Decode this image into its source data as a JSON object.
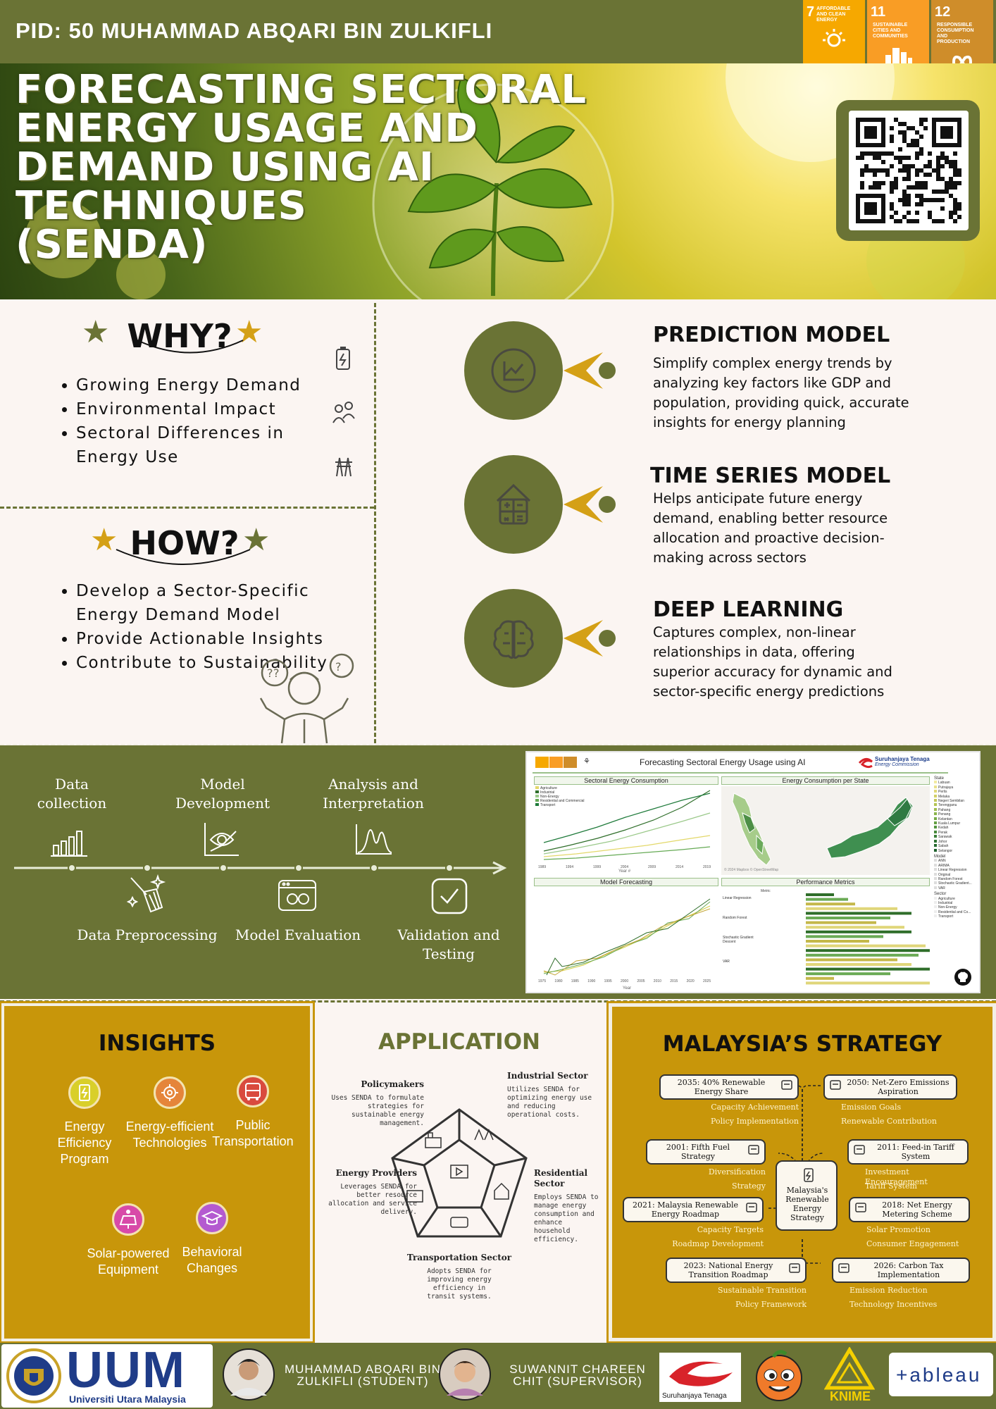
{
  "header": {
    "pid": "PID: 50 MUHAMMAD ABQARI BIN ZULKIFLI",
    "sdgs": [
      {
        "num": "7",
        "label": "AFFORDABLE AND CLEAN ENERGY",
        "color": "#f6a800",
        "icon": "sun-icon"
      },
      {
        "num": "11",
        "label": "SUSTAINABLE CITIES AND COMMUNITIES",
        "color": "#f99d25",
        "icon": "city-icon"
      },
      {
        "num": "12",
        "label": "RESPONSIBLE CONSUMPTION AND PRODUCTION",
        "color": "#cf8d2a",
        "icon": "infinity-icon"
      }
    ]
  },
  "hero": {
    "title_lines": [
      "FORECASTING SECTORAL",
      "ENERGY USAGE AND",
      "DEMAND USING AI",
      "TECHNIQUES",
      "(SENDA)"
    ]
  },
  "why": {
    "heading": "WHY?",
    "items": [
      "Growing Energy Demand",
      "Environmental Impact",
      "Sectoral Differences in Energy Use"
    ]
  },
  "how": {
    "heading": "HOW?",
    "items": [
      "Develop a Sector-Specific Energy Demand Model",
      "Provide Actionable Insights",
      "Contribute to Sustainability"
    ]
  },
  "models": [
    {
      "title": "PREDICTION MODEL",
      "text": "Simplify complex energy trends by analyzing key factors like GDP and population, providing quick, accurate insights for energy planning",
      "icon": "chart-icon"
    },
    {
      "title": "TIME SERIES MODEL",
      "text": "Helps anticipate future energy demand, enabling better resource allocation and proactive decision-making across sectors",
      "icon": "calculator-house-icon"
    },
    {
      "title": "DEEP LEARNING",
      "text": "Captures complex, non-linear relationships in data, offering superior accuracy for dynamic and sector-specific energy predictions",
      "icon": "brain-icon"
    }
  ],
  "flow": {
    "top": [
      "Data collection",
      "Model Development",
      "Analysis and Interpretation"
    ],
    "bottom": [
      "Data Preprocessing",
      "Model Evaluation",
      "Validation and Testing"
    ]
  },
  "dashboard": {
    "title": "Forecasting Sectoral Energy Usage using AI",
    "org": "Suruhanjaya Tenaga",
    "org_sub": "Energy Commission",
    "panel1": "Sectoral Energy Consumption",
    "panel2": "Energy Consumption per State",
    "panel3": "Model Forecasting",
    "panel4": "Performance Metrics",
    "legend_sectors": [
      "Agriculture",
      "Industrial",
      "Non-Energy",
      "Residential and Commercial",
      "Transport"
    ],
    "x_ticks1": [
      "1989",
      "1994",
      "1999",
      "2004",
      "2009",
      "2014",
      "2019"
    ],
    "x_ticks3": [
      "1975",
      "1980",
      "1985",
      "1990",
      "1995",
      "2000",
      "2005",
      "2010",
      "2015",
      "2020",
      "2025"
    ],
    "state_label": "State",
    "states": [
      "Labuan",
      "Putrajaya",
      "Perlis",
      "Melaka",
      "Negeri Sembilan",
      "Terengganu",
      "Pahang",
      "Penang",
      "Kelantan",
      "Kuala Lumpur",
      "Kedah",
      "Perak",
      "Sarawak",
      "Johor",
      "Sabah",
      "Selangor"
    ],
    "model_label": "Model",
    "models": [
      "ANN",
      "ARIMA",
      "Linear Regression",
      "Original",
      "Random Forest",
      "Stochastic Gradient...",
      "VAR"
    ],
    "sector_label": "Sector",
    "sectors": [
      "Agriculture",
      "Industrial",
      "Non-Energy",
      "Residential and Co...",
      "Transport"
    ],
    "map_credit": "© 2024 Mapbox © OpenStreetMap",
    "year_label": "Year #",
    "year_label2": "Year",
    "metric_models": [
      "Linear Regression",
      "Random Forest",
      "Stochastic Gradient Descent",
      "VAR"
    ],
    "metric_col": "Metric"
  },
  "insights": {
    "heading": "INSIGHTS",
    "items": [
      {
        "label": "Energy Efficiency Program",
        "color": "#d9cf2a",
        "icon": "battery-icon"
      },
      {
        "label": "Energy-efficient Technologies",
        "color": "#e5853a",
        "icon": "gear-icon"
      },
      {
        "label": "Public Transportation",
        "color": "#d94a3e",
        "icon": "bus-icon"
      },
      {
        "label": "Solar-powered Equipment",
        "color": "#d84aa8",
        "icon": "solar-panel-icon"
      },
      {
        "label": "Behavioral Changes",
        "color": "#b45ad0",
        "icon": "graduation-icon"
      }
    ]
  },
  "application": {
    "heading": "APPLICATION",
    "items": [
      {
        "title": "Policymakers",
        "text": "Uses SENDA to formulate strategies for sustainable energy management."
      },
      {
        "title": "Industrial Sector",
        "text": "Utilizes SENDA for optimizing energy use and reducing operational costs."
      },
      {
        "title": "Energy Providers",
        "text": "Leverages SENDA for better resource allocation and service delivery."
      },
      {
        "title": "Residential Sector",
        "text": "Employs SENDA to manage energy consumption and enhance household efficiency."
      },
      {
        "title": "Transportation Sector",
        "text": "Adopts SENDA for improving energy efficiency in transit systems."
      }
    ]
  },
  "strategy": {
    "heading": "MALAYSIA’S STRATEGY",
    "center": "Malaysia's Renewable Energy Strategy",
    "left": [
      {
        "title": "2035: 40% Renewable Energy Share",
        "subs": [
          "Capacity Achievement",
          "Policy Implementation"
        ]
      },
      {
        "title": "2001: Fifth Fuel Strategy",
        "subs": [
          "Diversification",
          "Strategy"
        ]
      },
      {
        "title": "2021: Malaysia Renewable Energy Roadmap",
        "subs": [
          "Capacity Targets",
          "Roadmap Development"
        ]
      },
      {
        "title": "2023: National Energy Transition Roadmap",
        "subs": [
          "Sustainable Transition",
          "Policy Framework"
        ]
      }
    ],
    "right": [
      {
        "title": "2050: Net-Zero Emissions Aspiration",
        "subs": [
          "Emission Goals",
          "Renewable Contribution"
        ]
      },
      {
        "title": "2011: Feed-in Tariff System",
        "subs": [
          "Investment Encouragement",
          "Tariff System"
        ]
      },
      {
        "title": "2018: Net Energy Metering Scheme",
        "subs": [
          "Solar Promotion",
          "Consumer Engagement"
        ]
      },
      {
        "title": "2026: Carbon Tax Implementation",
        "subs": [
          "Emission Reduction",
          "Technology Incentives"
        ]
      }
    ]
  },
  "footer": {
    "uum": "UUM",
    "uum_sub": "Universiti Utara Malaysia",
    "student": "MUHAMMAD ABQARI BIN ZULKIFLI (STUDENT)",
    "supervisor": "SUWANNIT CHAREEN CHIT (SUPERVISOR)",
    "st_logo": "Suruhanjaya Tenaga",
    "knime": "KNIME",
    "tableau": "+ableau"
  }
}
